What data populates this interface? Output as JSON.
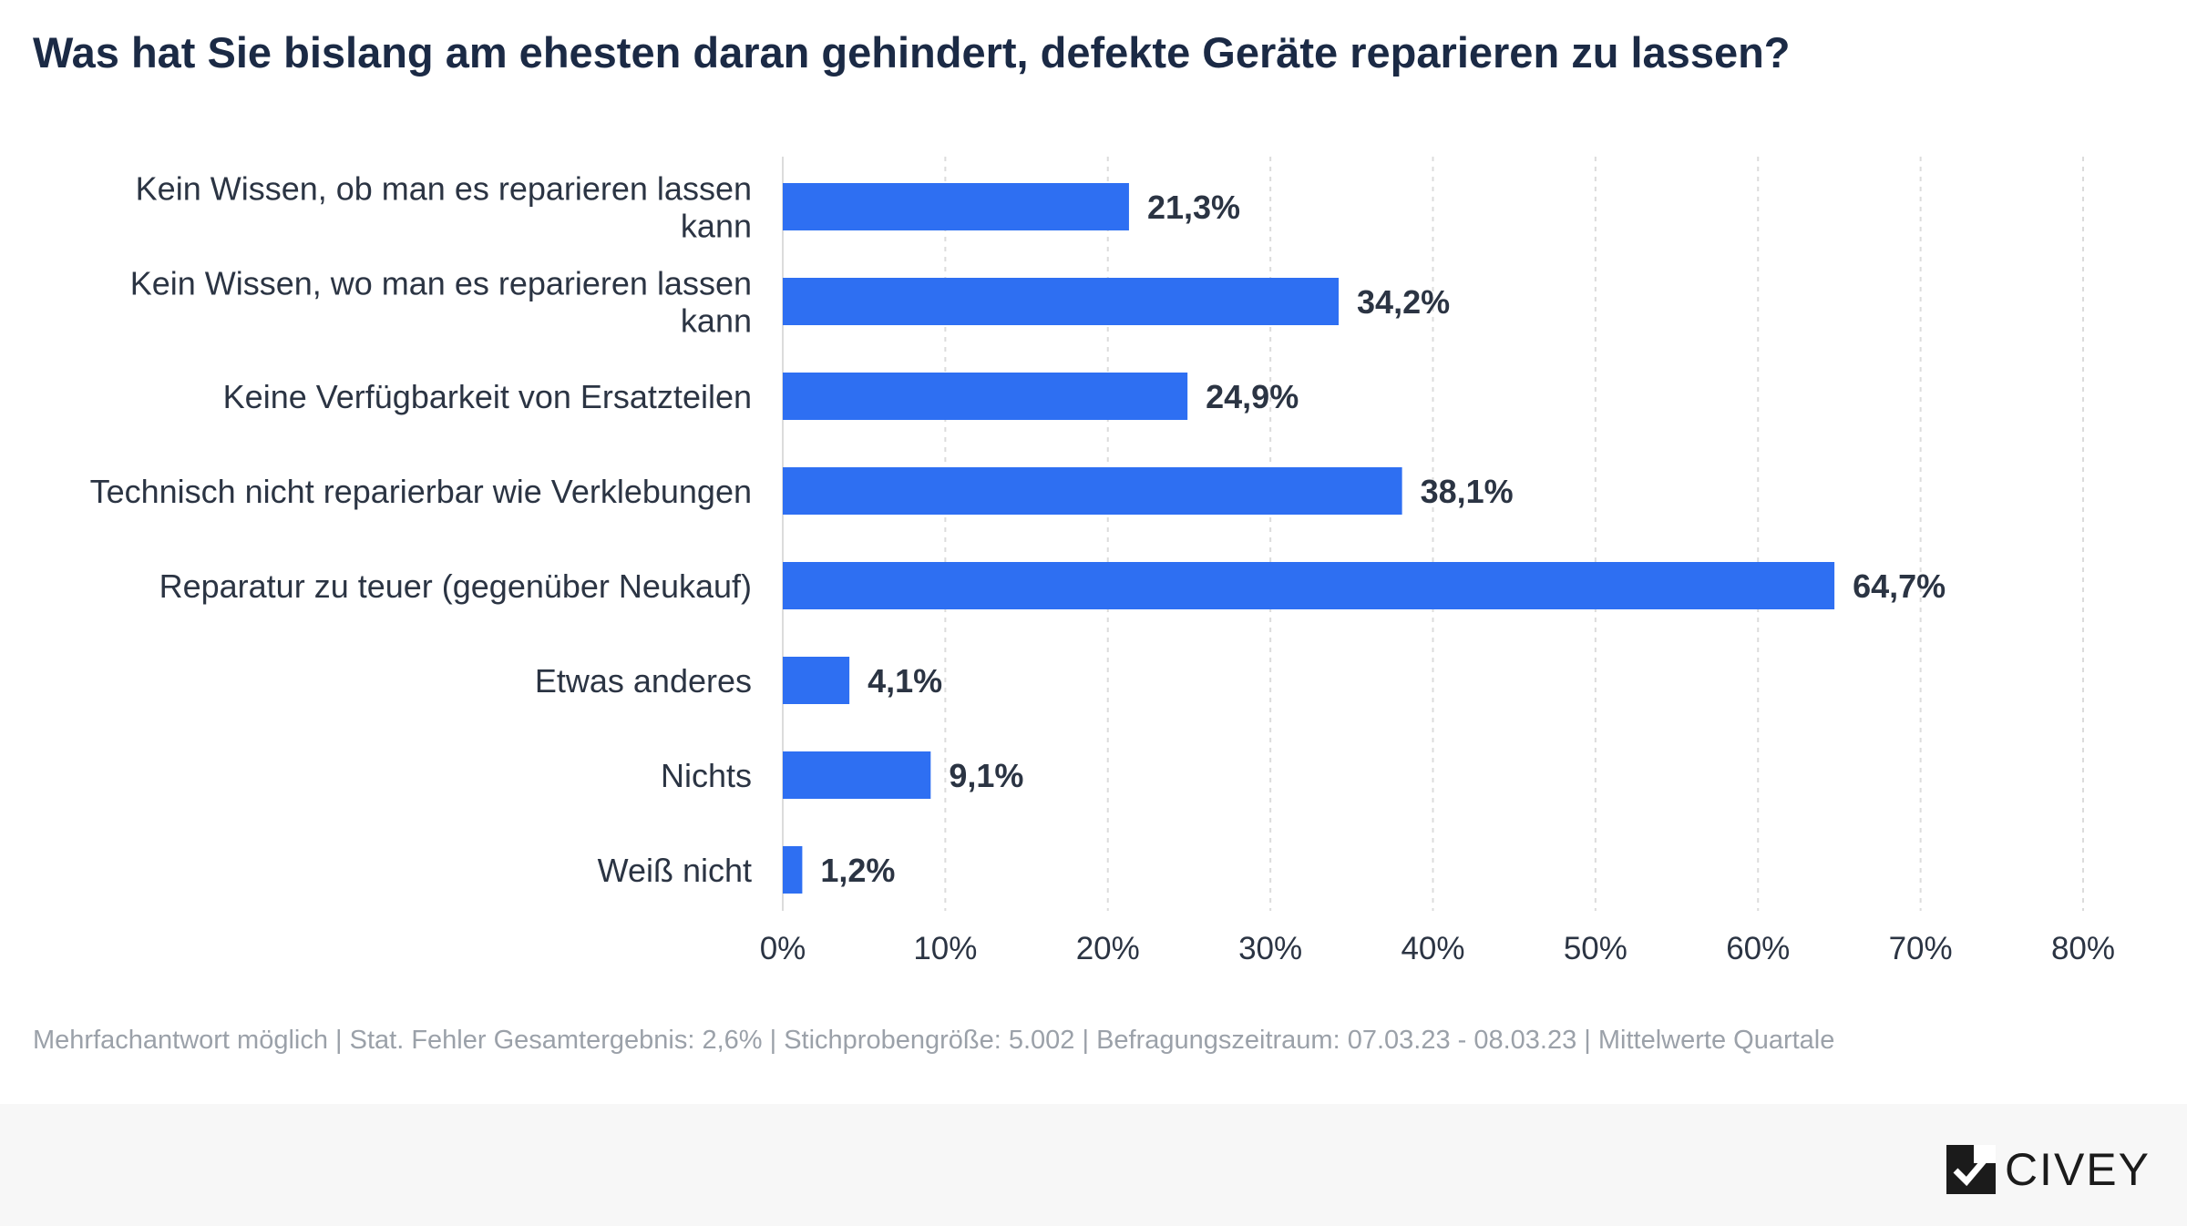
{
  "title": "Was hat Sie bislang am ehesten daran gehindert, defekte Geräte reparieren zu lassen?",
  "footnote": "Mehrfachantwort möglich | Stat. Fehler Gesamtergebnis: 2,6% | Stichprobengröße: 5.002 | Befragungszeitraum: 07.03.23 - 08.03.23 | Mittelwerte Quartale",
  "brand": {
    "name": "CIVEY",
    "icon": "civey-logo-icon"
  },
  "colors": {
    "bar": "#2e6ff2",
    "grid": "#dcdcdc",
    "text": "#2b3443",
    "title": "#1b2a45"
  },
  "chart_data": {
    "type": "bar",
    "orientation": "horizontal",
    "categories": [
      [
        "Kein Wissen, ob man es reparieren lassen",
        "kann"
      ],
      [
        "Kein Wissen, wo man es reparieren lassen",
        "kann"
      ],
      [
        "Keine Verfügbarkeit von Ersatzteilen"
      ],
      [
        "Technisch nicht reparierbar wie Verklebungen"
      ],
      [
        "Reparatur zu teuer (gegenüber Neukauf)"
      ],
      [
        "Etwas anderes"
      ],
      [
        "Nichts"
      ],
      [
        "Weiß nicht"
      ]
    ],
    "values": [
      21.3,
      34.2,
      24.9,
      38.1,
      64.7,
      4.1,
      9.1,
      1.2
    ],
    "value_labels": [
      "21,3%",
      "34,2%",
      "24,9%",
      "38,1%",
      "64,7%",
      "4,1%",
      "9,1%",
      "1,2%"
    ],
    "xlim": [
      0,
      80
    ],
    "ticks": [
      0,
      10,
      20,
      30,
      40,
      50,
      60,
      70,
      80
    ],
    "tick_labels": [
      "0%",
      "10%",
      "20%",
      "30%",
      "40%",
      "50%",
      "60%",
      "70%",
      "80%"
    ],
    "grid": true,
    "grid_style": "dashed-vertical"
  }
}
